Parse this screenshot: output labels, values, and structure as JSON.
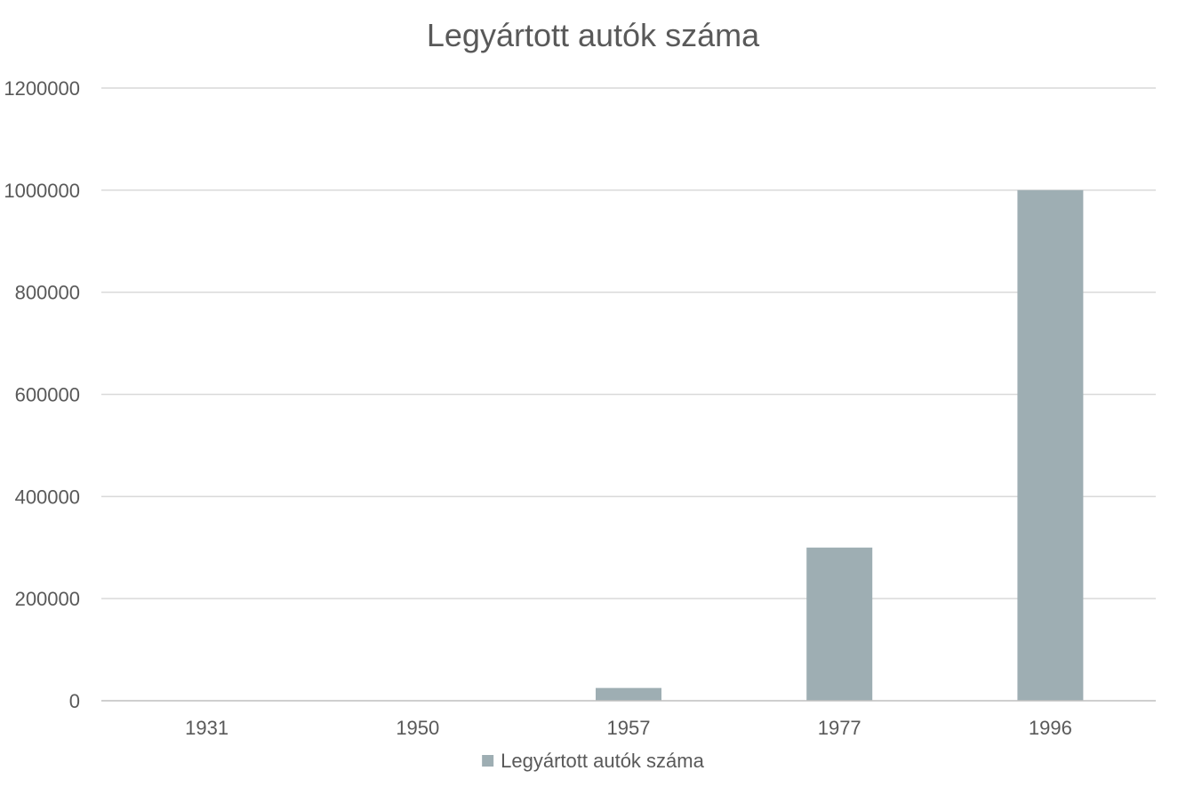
{
  "chart_data": {
    "type": "bar",
    "title": "Legyártott autók száma",
    "categories": [
      "1931",
      "1950",
      "1957",
      "1977",
      "1996"
    ],
    "series": [
      {
        "name": "Legyártott autók száma",
        "values": [
          0,
          0,
          25000,
          300000,
          1000000
        ],
        "color": "#9eaeb3"
      }
    ],
    "yticks": [
      "0",
      "200000",
      "400000",
      "600000",
      "800000",
      "1000000",
      "1200000"
    ],
    "ylim": [
      0,
      1200000
    ],
    "grid": true,
    "legend_position": "bottom",
    "colors": {
      "text": "#595959",
      "grid": "#d9d9d9",
      "axis": "#bfbfbf"
    }
  }
}
